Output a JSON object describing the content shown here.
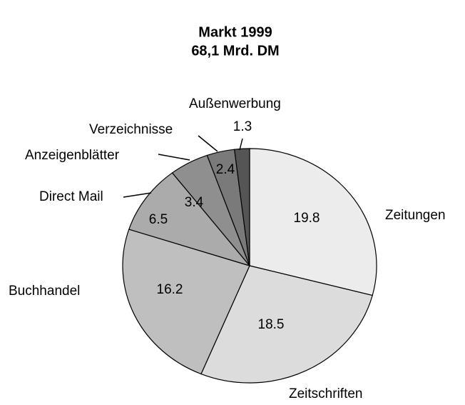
{
  "chart_data": {
    "type": "pie",
    "title": [
      "Markt 1999",
      "68,1 Mrd. DM"
    ],
    "categories": [
      "Zeitungen",
      "Zeitschriften",
      "Buchhandel",
      "Direct Mail",
      "Anzeigenblätter",
      "Verzeichnisse",
      "Außenwerbung"
    ],
    "values": [
      19.8,
      18.5,
      16.2,
      6.5,
      3.4,
      2.4,
      1.3
    ],
    "colors": [
      "#ececec",
      "#dcdcdc",
      "#bfbfbf",
      "#ababab",
      "#8f8f8f",
      "#7a7a7a",
      "#555555"
    ]
  }
}
